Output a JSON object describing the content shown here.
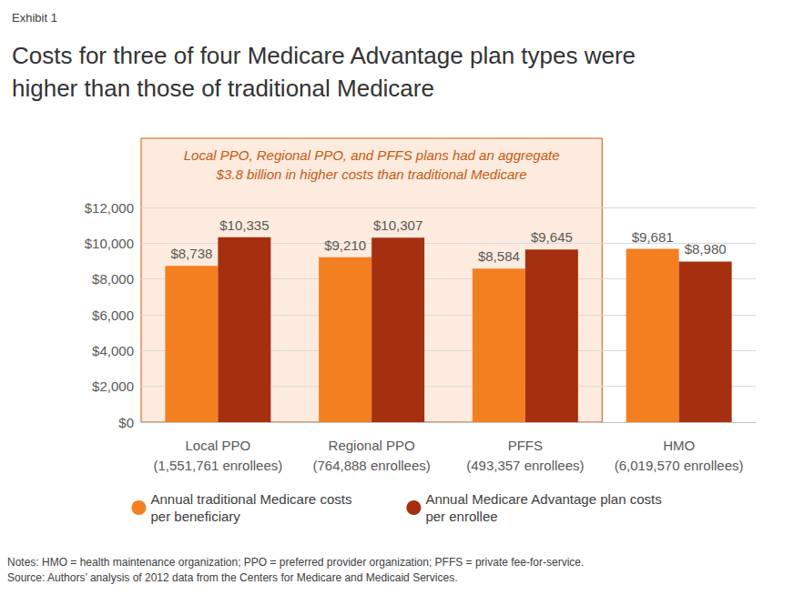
{
  "chart_data": {
    "type": "bar",
    "label": "Exhibit 1",
    "title": "Costs for three of four Medicare Advantage plan types were higher than those of traditional Medicare",
    "categories": [
      "Local PPO\n(1,551,761 enrollees)",
      "Regional PPO\n(764,888 enrollees)",
      "PFFS\n(493,357 enrollees)",
      "HMO\n(6,019,570 enrollees)"
    ],
    "series": [
      {
        "name": "Annual traditional Medicare costs\nper beneficiary",
        "color": "#F47F20",
        "values": [
          8738,
          9210,
          8584,
          9681
        ],
        "value_labels": [
          "$8,738",
          "$9,210",
          "$8,584",
          "$9,681"
        ]
      },
      {
        "name": "Annual Medicare Advantage plan costs\nper enrollee",
        "color": "#A5300F",
        "values": [
          10335,
          10307,
          9645,
          8980
        ],
        "value_labels": [
          "$10,335",
          "$10,307",
          "$9,645",
          "$8,980"
        ]
      }
    ],
    "ylim": [
      0,
      12000
    ],
    "yticks": [
      {
        "value": 0,
        "label": "$0"
      },
      {
        "value": 2000,
        "label": "$2,000"
      },
      {
        "value": 4000,
        "label": "$4,000"
      },
      {
        "value": 6000,
        "label": "$6,000"
      },
      {
        "value": 8000,
        "label": "$8,000"
      },
      {
        "value": 10000,
        "label": "$10,000"
      },
      {
        "value": 12000,
        "label": "$12,000"
      }
    ],
    "grid": true,
    "data_labels": true,
    "legend": "bottom",
    "annotation": {
      "text": "Local PPO, Regional PPO, and PFFS plans had an aggregate\n$3.8 billion in higher costs than traditional Medicare",
      "categories": [
        "Local PPO\n(1,551,761 enrollees)",
        "Regional PPO\n(764,888 enrollees)",
        "PFFS\n(493,357 enrollees)"
      ]
    },
    "notes": [
      "Notes: HMO = health maintenance organization; PPO = preferred provider organization; PFFS = private fee-for-service.",
      "Source: Authors’ analysis of 2012 data from the Centers for Medicare and Medicaid Services."
    ]
  }
}
